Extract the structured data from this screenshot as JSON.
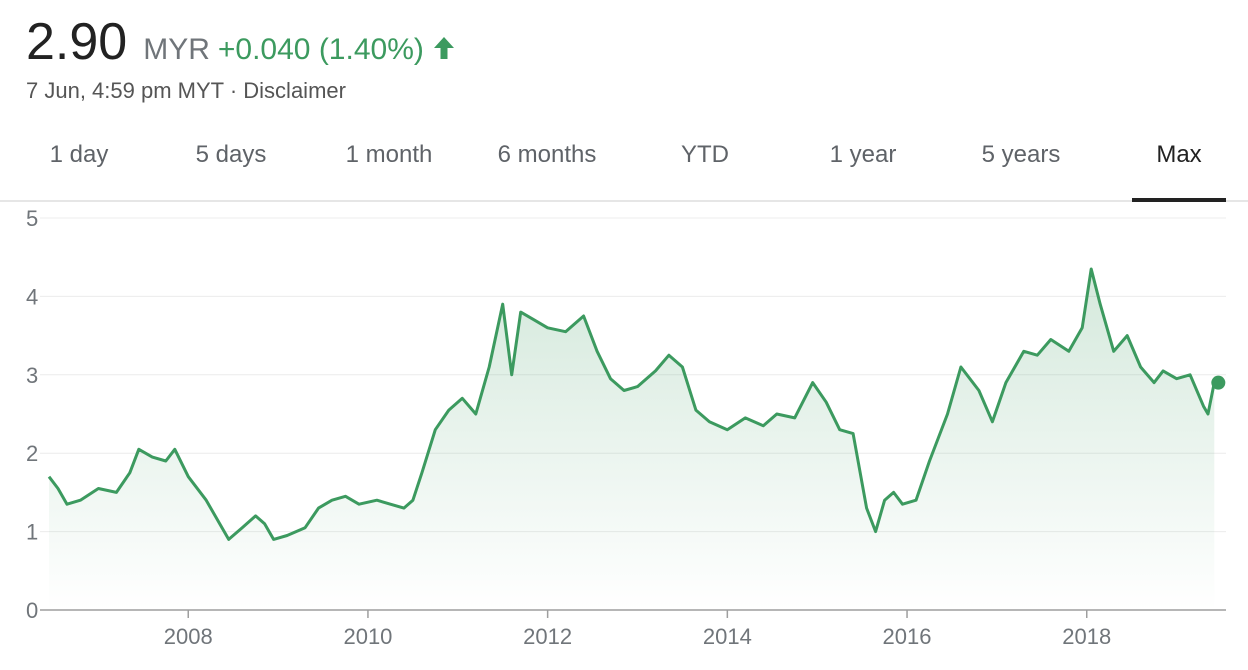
{
  "quote": {
    "price": "2.90",
    "currency": "MYR",
    "change": "+0.040 (1.40%)",
    "timestamp": "7 Jun, 4:59 pm MYT",
    "separator": "·",
    "disclaimer": "Disclaimer",
    "up_color": "#3c9a5f"
  },
  "tabs": [
    {
      "label": "1 day"
    },
    {
      "label": "5 days"
    },
    {
      "label": "1 month"
    },
    {
      "label": "6 months"
    },
    {
      "label": "YTD"
    },
    {
      "label": "1 year"
    },
    {
      "label": "5 years"
    },
    {
      "label": "Max",
      "active": true
    }
  ],
  "chart_data": {
    "type": "area",
    "title": "",
    "xlabel": "",
    "ylabel": "",
    "ylim": [
      0,
      5
    ],
    "xlim": [
      2006.35,
      2019.55
    ],
    "y_ticks": [
      0,
      1,
      2,
      3,
      4,
      5
    ],
    "x_ticks": [
      2008,
      2010,
      2012,
      2014,
      2016,
      2018
    ],
    "grid": "horizontal",
    "line_color": "#3c9a5f",
    "series": [
      {
        "x": [
          2006.45,
          2006.55,
          2006.65,
          2006.8,
          2007.0,
          2007.2,
          2007.35,
          2007.45,
          2007.6,
          2007.75,
          2007.85,
          2008.0,
          2008.2,
          2008.35,
          2008.45,
          2008.6,
          2008.75,
          2008.85,
          2008.95,
          2009.1,
          2009.3,
          2009.45,
          2009.6,
          2009.75,
          2009.9,
          2010.1,
          2010.25,
          2010.4,
          2010.5,
          2010.6,
          2010.75,
          2010.9,
          2011.05,
          2011.2,
          2011.35,
          2011.5,
          2011.6,
          2011.7,
          2011.85,
          2012.0,
          2012.2,
          2012.4,
          2012.55,
          2012.7,
          2012.85,
          2013.0,
          2013.2,
          2013.35,
          2013.5,
          2013.65,
          2013.8,
          2014.0,
          2014.2,
          2014.4,
          2014.55,
          2014.75,
          2014.95,
          2015.1,
          2015.25,
          2015.4,
          2015.55,
          2015.65,
          2015.75,
          2015.85,
          2015.95,
          2016.1,
          2016.25,
          2016.45,
          2016.6,
          2016.8,
          2016.95,
          2017.1,
          2017.3,
          2017.45,
          2017.6,
          2017.8,
          2017.95,
          2018.05,
          2018.15,
          2018.3,
          2018.45,
          2018.6,
          2018.75,
          2018.85,
          2019.0,
          2019.15,
          2019.3,
          2019.35,
          2019.42
        ],
        "values": [
          1.7,
          1.55,
          1.35,
          1.4,
          1.55,
          1.5,
          1.75,
          2.05,
          1.95,
          1.9,
          2.05,
          1.7,
          1.4,
          1.1,
          0.9,
          1.05,
          1.2,
          1.1,
          0.9,
          0.95,
          1.05,
          1.3,
          1.4,
          1.45,
          1.35,
          1.4,
          1.35,
          1.3,
          1.4,
          1.75,
          2.3,
          2.55,
          2.7,
          2.5,
          3.1,
          3.9,
          3.0,
          3.8,
          3.7,
          3.6,
          3.55,
          3.75,
          3.3,
          2.95,
          2.8,
          2.85,
          3.05,
          3.25,
          3.1,
          2.55,
          2.4,
          2.3,
          2.45,
          2.35,
          2.5,
          2.45,
          2.9,
          2.65,
          2.3,
          2.25,
          1.3,
          1.0,
          1.4,
          1.5,
          1.35,
          1.4,
          1.9,
          2.5,
          3.1,
          2.8,
          2.4,
          2.9,
          3.3,
          3.25,
          3.45,
          3.3,
          3.6,
          4.35,
          3.9,
          3.3,
          3.5,
          3.1,
          2.9,
          3.05,
          2.95,
          3.0,
          2.6,
          2.5,
          2.9
        ]
      }
    ],
    "last_point": {
      "x": 2019.42,
      "value": 2.9
    }
  }
}
